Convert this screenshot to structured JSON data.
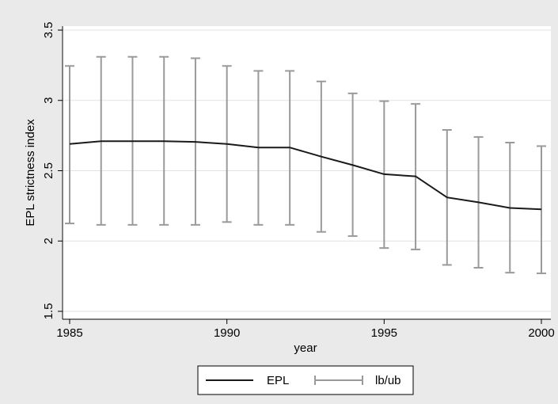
{
  "chart_data": {
    "type": "line",
    "xlabel": "year",
    "ylabel": "EPL strictness index",
    "xlim": [
      1985,
      2000
    ],
    "ylim": [
      1.5,
      3.5
    ],
    "xticks": [
      "1985",
      "1990",
      "1995",
      "2000"
    ],
    "yticks": [
      "1.5",
      "2",
      "2.5",
      "3",
      "3.5"
    ],
    "grid": true,
    "legend_position": "bottom-center",
    "colors": {
      "line": "#1a1a1a",
      "bars": "#9a9a9a",
      "grid": "#e2e2e2",
      "background": "#eaeaea",
      "plot": "#ffffff"
    },
    "series": [
      {
        "name": "EPL",
        "x": [
          1985,
          1986,
          1987,
          1988,
          1989,
          1990,
          1991,
          1992,
          1993,
          1994,
          1995,
          1996,
          1997,
          1998,
          1999,
          2000
        ],
        "values": [
          2.69,
          2.71,
          2.71,
          2.71,
          2.705,
          2.69,
          2.665,
          2.665,
          2.6,
          2.54,
          2.475,
          2.46,
          2.31,
          2.275,
          2.235,
          2.225
        ]
      },
      {
        "name": "lb/ub",
        "x": [
          1985,
          1986,
          1987,
          1988,
          1989,
          1990,
          1991,
          1992,
          1993,
          1994,
          1995,
          1996,
          1997,
          1998,
          1999,
          2000
        ],
        "lower": [
          2.125,
          2.115,
          2.115,
          2.115,
          2.115,
          2.135,
          2.115,
          2.115,
          2.065,
          2.035,
          1.95,
          1.94,
          1.83,
          1.81,
          1.775,
          1.77
        ],
        "upper": [
          3.245,
          3.31,
          3.31,
          3.31,
          3.3,
          3.245,
          3.21,
          3.21,
          3.135,
          3.05,
          2.995,
          2.975,
          2.79,
          2.74,
          2.7,
          2.675
        ]
      }
    ]
  }
}
